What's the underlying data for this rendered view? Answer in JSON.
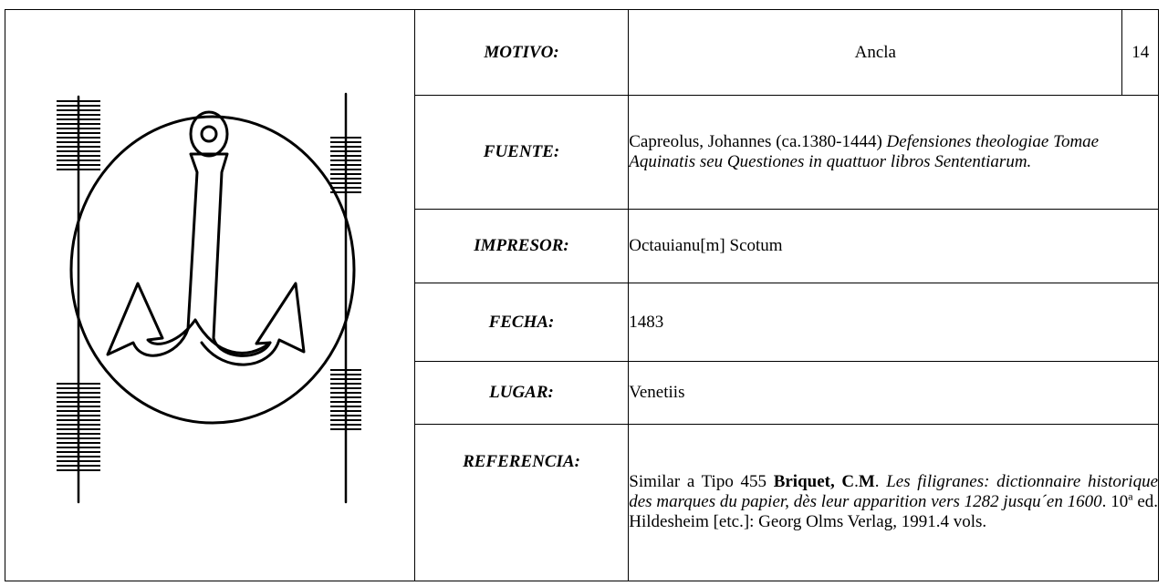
{
  "rows": [
    {
      "label": "MOTIVO:",
      "value": [
        "Ancla"
      ],
      "number": 14
    },
    {
      "label": "FUENTE:",
      "value": [
        "Capreolus, Johannes (ca.1380-1444) ",
        "Defensiones theologiae Tomae Aquinatis seu Questiones in quattuor libros Sententiarum."
      ]
    },
    {
      "label": "IMPRESOR:",
      "value": [
        "Octauianu[m] Scotum"
      ]
    },
    {
      "label": "FECHA:",
      "value": [
        "1483"
      ]
    },
    {
      "label": "LUGAR:",
      "value": [
        "Venetiis"
      ]
    },
    {
      "label": "REFERENCIA:",
      "value": [
        "Similar a Tipo 455 ",
        "Briquet, C",
        ".",
        "M",
        ". ",
        "Les filigranes: dictionnaire historique des marques du papier, dès leur apparition vers 1282 jusqu´en 1600",
        ". 10",
        "a",
        " ed. Hildesheim [etc.]: Georg Olms Verlag, 1991.4 vols."
      ]
    }
  ]
}
